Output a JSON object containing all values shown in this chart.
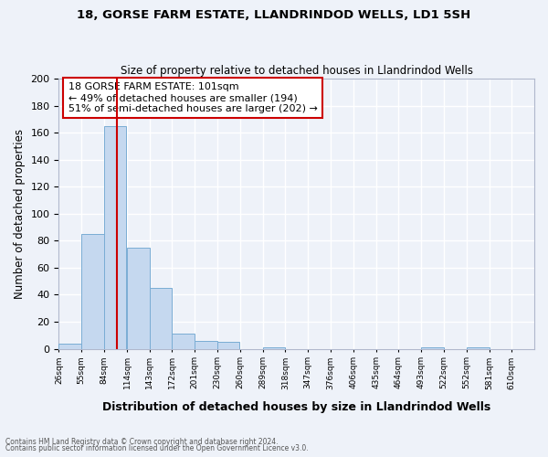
{
  "title1": "18, GORSE FARM ESTATE, LLANDRINDOD WELLS, LD1 5SH",
  "title2": "Size of property relative to detached houses in Llandrindod Wells",
  "xlabel": "Distribution of detached houses by size in Llandrindod Wells",
  "ylabel": "Number of detached properties",
  "bin_labels": [
    "26sqm",
    "55sqm",
    "84sqm",
    "114sqm",
    "143sqm",
    "172sqm",
    "201sqm",
    "230sqm",
    "260sqm",
    "289sqm",
    "318sqm",
    "347sqm",
    "376sqm",
    "406sqm",
    "435sqm",
    "464sqm",
    "493sqm",
    "522sqm",
    "552sqm",
    "581sqm",
    "610sqm"
  ],
  "bin_edges": [
    26,
    55,
    84,
    114,
    143,
    172,
    201,
    230,
    260,
    289,
    318,
    347,
    376,
    406,
    435,
    464,
    493,
    522,
    552,
    581,
    610
  ],
  "bar_values": [
    4,
    85,
    165,
    75,
    45,
    11,
    6,
    5,
    0,
    1,
    0,
    0,
    0,
    0,
    0,
    0,
    1,
    0,
    1,
    0,
    0
  ],
  "bar_color": "#c5d8ef",
  "bar_edgecolor": "#7aadd4",
  "vline_x": 101,
  "vline_color": "#cc0000",
  "annotation_box_text": "18 GORSE FARM ESTATE: 101sqm\n← 49% of detached houses are smaller (194)\n51% of semi-detached houses are larger (202) →",
  "annotation_box_color": "#cc0000",
  "ylim": [
    0,
    200
  ],
  "yticks": [
    0,
    20,
    40,
    60,
    80,
    100,
    120,
    140,
    160,
    180,
    200
  ],
  "footer1": "Contains HM Land Registry data © Crown copyright and database right 2024.",
  "footer2": "Contains public sector information licensed under the Open Government Licence v3.0.",
  "bg_color": "#eef2f9",
  "grid_color": "#ffffff"
}
